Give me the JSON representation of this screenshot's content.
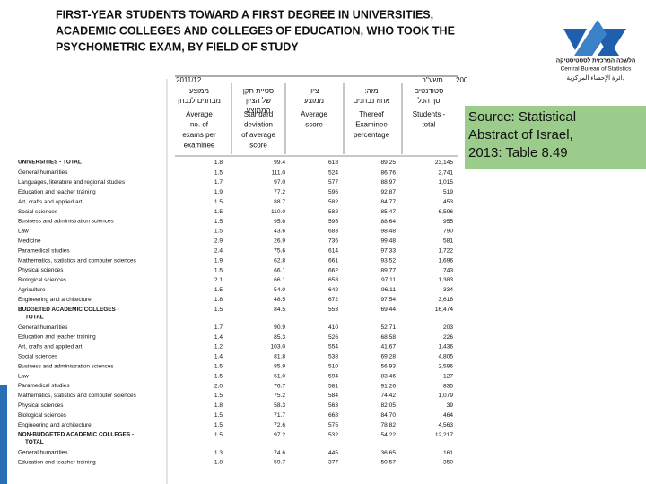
{
  "header": {
    "title": [
      "FIRST-YEAR STUDENTS TOWARD A FIRST DEGREE IN UNIVERSITIES,",
      "ACADEMIC COLLEGES AND COLLEGES OF EDUCATION, WHO TOOK THE",
      "PSYCHOMETRIC EXAM, BY FIELD OF STUDY"
    ]
  },
  "logo": {
    "hebrew": "הלשכה המרכזית לסטטיסטיקה",
    "english": "Central Bureau of Statistics",
    "arabic": "دائرة الإحصاء المركزية"
  },
  "source": [
    "Source: Statistical",
    "Abstract of Israel,",
    " 2013: Table 8.49"
  ],
  "table": {
    "year": "2011/12",
    "year_hebrew": "תשע\"ב",
    "year_cut": "200",
    "columns": [
      {
        "hebrew": [
          "ממוצע",
          "מבחנים לנבחן"
        ],
        "english": [
          "Average",
          "no. of",
          "exams per",
          "examinee"
        ]
      },
      {
        "hebrew": [
          "סטיית תקן",
          "של הציון",
          "הממוצע"
        ],
        "english": [
          "Standard",
          "deviation",
          "of average",
          "score"
        ]
      },
      {
        "hebrew": [
          "ציון",
          "ממוצע"
        ],
        "english": [
          "Average",
          "score"
        ]
      },
      {
        "hebrew": [
          "מזה:",
          "אחוז נבחנים"
        ],
        "english": [
          "Thereof",
          "Examinee",
          "percentage"
        ]
      },
      {
        "hebrew": [
          "סטודנטים",
          "סך הכל"
        ],
        "english": [
          "Students -",
          "total"
        ]
      }
    ],
    "rows": [
      {
        "label": "UNIVERSITIES - TOTAL",
        "cells": [
          "1.8",
          "99.4",
          "618",
          "89.25",
          "23,145"
        ]
      },
      {
        "label": "General humanities",
        "cells": [
          "1.5",
          "111.0",
          "524",
          "86.76",
          "2,741"
        ]
      },
      {
        "label": "Languages, literature and regional studies",
        "cells": [
          "1.7",
          "97.0",
          "577",
          "88.97",
          "1,015"
        ]
      },
      {
        "label": "Education and teacher training",
        "cells": [
          "1.9",
          "77.2",
          "596",
          "92.87",
          "519"
        ]
      },
      {
        "label": "Art, crafts and applied art",
        "cells": [
          "1.5",
          "88.7",
          "582",
          "84.77",
          "453"
        ]
      },
      {
        "label": "Social sciences",
        "cells": [
          "1.5",
          "110.0",
          "582",
          "85.47",
          "6,596"
        ]
      },
      {
        "label": "Business and administration sciences",
        "cells": [
          "1.5",
          "95.6",
          "595",
          "88.64",
          "955"
        ]
      },
      {
        "label": "Law",
        "cells": [
          "1.5",
          "43.6",
          "683",
          "98.48",
          "790"
        ]
      },
      {
        "label": "Medicine",
        "cells": [
          "2.9",
          "26.9",
          "736",
          "99.48",
          "581"
        ]
      },
      {
        "label": "Paramedical studies",
        "cells": [
          "2.4",
          "75.6",
          "614",
          "97.33",
          "1,722"
        ]
      },
      {
        "label": "Mathematics, statistics and computer sciences",
        "cells": [
          "1.9",
          "62.8",
          "661",
          "93.52",
          "1,696"
        ]
      },
      {
        "label": "Physical sciences",
        "cells": [
          "1.5",
          "66.1",
          "662",
          "89.77",
          "743"
        ]
      },
      {
        "label": "Biological sciences",
        "cells": [
          "2.1",
          "66.1",
          "658",
          "97.11",
          "1,383"
        ]
      },
      {
        "label": "Agriculture",
        "cells": [
          "1.5",
          "54.0",
          "642",
          "96.11",
          "334"
        ]
      },
      {
        "label": "Engineering and architecture",
        "cells": [
          "1.8",
          "48.5",
          "672",
          "97.54",
          "3,616"
        ]
      },
      {
        "label": "BUDGETED ACADEMIC COLLEGES -",
        "label_cont": "TOTAL",
        "cells": [
          "1.5",
          "84.5",
          "553",
          "69.44",
          "16,474"
        ]
      },
      {
        "label": "General humanities",
        "cells": [
          "1.7",
          "90.9",
          "410",
          "52.71",
          "203"
        ]
      },
      {
        "label": "Education and teacher training",
        "cells": [
          "1.4",
          "85.3",
          "526",
          "68.58",
          "226"
        ]
      },
      {
        "label": "Art, crafts and applied art",
        "cells": [
          "1.2",
          "103.0",
          "554",
          "41.67",
          "1,436"
        ]
      },
      {
        "label": "Social sciences",
        "cells": [
          "1.4",
          "81.8",
          "538",
          "69.28",
          "4,805"
        ]
      },
      {
        "label": "Business and administration sciences",
        "cells": [
          "1.5",
          "85.9",
          "510",
          "56.93",
          "2,596"
        ]
      },
      {
        "label": "Law",
        "cells": [
          "1.5",
          "51.0",
          "594",
          "83.46",
          "127"
        ]
      },
      {
        "label": "Paramedical studies",
        "cells": [
          "2.0",
          "76.7",
          "581",
          "91.26",
          "835"
        ]
      },
      {
        "label": "Mathematics, statistics and computer sciences",
        "cells": [
          "1.5",
          "75.2",
          "584",
          "74.42",
          "1,079"
        ]
      },
      {
        "label": "Physical sciences",
        "cells": [
          "1.8",
          "58.3",
          "563",
          "82.05",
          "39"
        ]
      },
      {
        "label": "Biological sciences",
        "cells": [
          "1.5",
          "71.7",
          "668",
          "84.70",
          "464"
        ]
      },
      {
        "label": "Engineering and architecture",
        "cells": [
          "1.5",
          "72.6",
          "575",
          "78.82",
          "4,563"
        ]
      },
      {
        "label": "NON-BUDGETED ACADEMIC COLLEGES -",
        "label_cont": "TOTAL",
        "cells": [
          "1.5",
          "97.2",
          "532",
          "54.22",
          "12,217"
        ]
      },
      {
        "label": "General humanities",
        "cells": [
          "1.3",
          "74.6",
          "445",
          "36.65",
          "161"
        ]
      },
      {
        "label": "Education and teacher training",
        "cells": [
          "1.8",
          "59.7",
          "377",
          "50.57",
          "350"
        ]
      }
    ]
  }
}
